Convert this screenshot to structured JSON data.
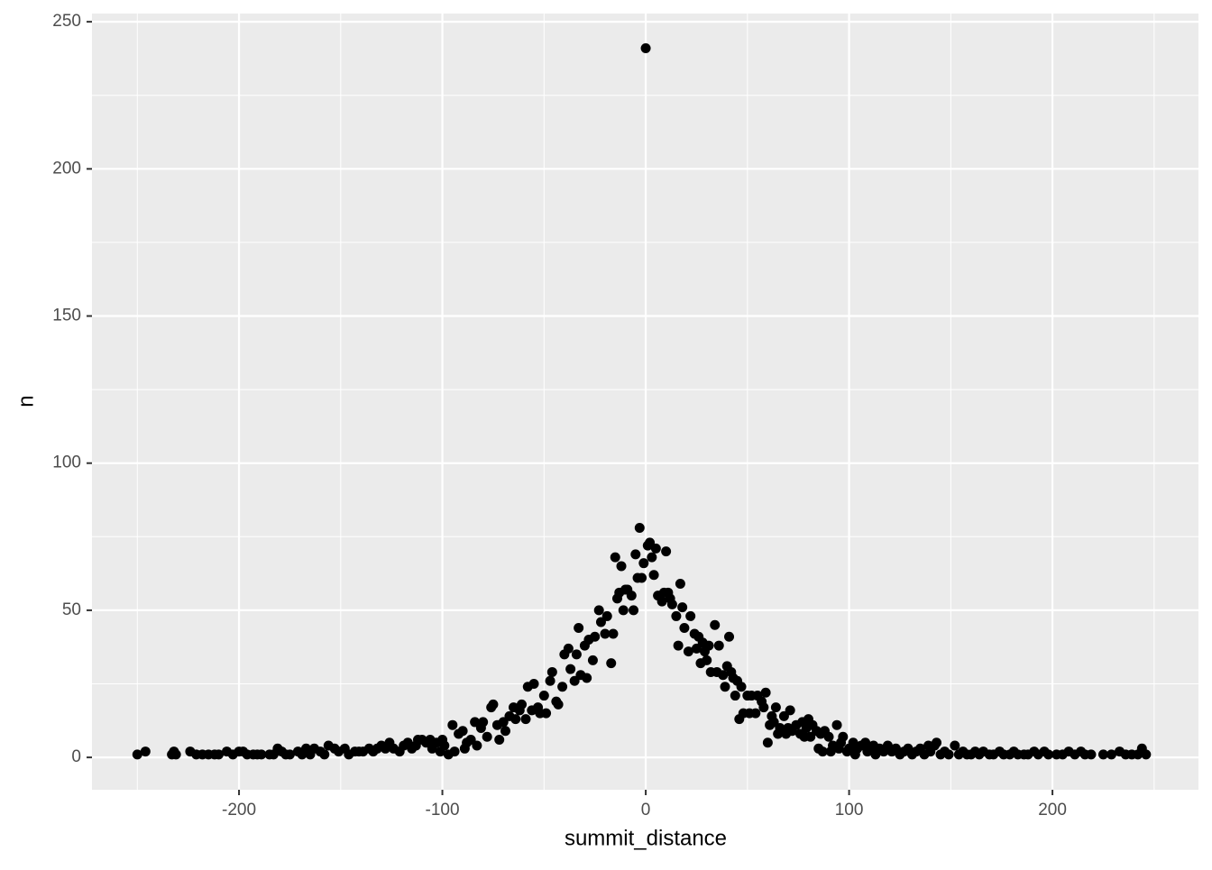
{
  "chart_data": {
    "type": "scatter",
    "x_label": "summit_distance",
    "y_label": "n",
    "xlim": [
      -272.3,
      271.8
    ],
    "ylim": [
      -11,
      252.8
    ],
    "xticks": [
      -200,
      -100,
      0,
      100,
      200
    ],
    "yticks": [
      0,
      50,
      100,
      150,
      200,
      250
    ],
    "x_minor_grid": [
      -250,
      -150,
      -50,
      50,
      150,
      250
    ],
    "y_minor_grid": [
      25,
      75,
      125,
      175,
      225
    ],
    "grid": true,
    "color": "#000000",
    "series": [
      {
        "name": "n",
        "color": "#000000",
        "x": [
          -250,
          -246,
          -233,
          -232,
          -231,
          -224,
          -221,
          -218,
          -215,
          -212,
          -210,
          -206,
          -203,
          -200,
          -198,
          -196,
          -193,
          -191,
          -189,
          -185,
          -183,
          -181,
          -179,
          -177,
          -175,
          -171,
          -169,
          -167,
          -165,
          -163,
          -160,
          -158,
          -156,
          -153,
          -151,
          -148,
          -146,
          -143,
          -141,
          -139,
          -136,
          -134,
          -132,
          -130,
          -128,
          -126,
          -124,
          -121,
          -119,
          -117,
          -115,
          -113,
          -112,
          -110,
          -108,
          -106,
          -105,
          -103,
          -101,
          -100,
          -99,
          -97,
          -95,
          -94,
          -92,
          -90,
          -89,
          -88,
          -86,
          -84,
          -83,
          -81,
          -80,
          -78,
          -76,
          -75,
          -73,
          -72,
          -70,
          -69,
          -67,
          -65,
          -64,
          -62,
          -61,
          -59,
          -58,
          -56,
          -55,
          -53,
          -52,
          -50,
          -49,
          -47,
          -46,
          -44,
          -43,
          -41,
          -40,
          -38,
          -37,
          -35,
          -34,
          -33,
          -32,
          -30,
          -29,
          -28,
          -26,
          -25,
          -23,
          -22,
          -20,
          -19,
          -17,
          -16,
          -15,
          -14,
          -13,
          -12,
          -11,
          -10,
          -9,
          -7,
          -6,
          -5,
          -4,
          -3,
          -2,
          -1,
          0,
          1,
          2,
          3,
          4,
          5,
          6,
          8,
          9,
          10,
          11,
          12,
          13,
          15,
          16,
          17,
          18,
          19,
          21,
          22,
          24,
          25,
          26,
          27,
          28,
          29,
          30,
          31,
          32,
          34,
          35,
          36,
          38,
          39,
          40,
          41,
          42,
          43,
          44,
          45,
          46,
          47,
          48,
          50,
          51,
          52,
          54,
          55,
          57,
          58,
          59,
          60,
          61,
          62,
          63,
          64,
          65,
          66,
          68,
          69,
          70,
          71,
          72,
          74,
          76,
          77,
          78,
          79,
          80,
          81,
          82,
          84,
          85,
          86,
          87,
          88,
          90,
          91,
          92,
          94,
          95,
          96,
          97,
          99,
          100,
          102,
          103,
          104,
          106,
          108,
          109,
          110,
          112,
          113,
          115,
          117,
          119,
          121,
          123,
          125,
          127,
          129,
          131,
          133,
          135,
          137,
          139,
          140,
          142,
          143,
          145,
          147,
          149,
          152,
          154,
          156,
          158,
          160,
          162,
          164,
          166,
          169,
          171,
          174,
          176,
          179,
          181,
          183,
          186,
          188,
          191,
          193,
          196,
          198,
          202,
          205,
          208,
          211,
          214,
          216,
          219,
          225,
          229,
          233,
          236,
          239,
          242,
          244,
          246
        ],
        "values": [
          1,
          2,
          1,
          2,
          1,
          2,
          1,
          1,
          1,
          1,
          1,
          2,
          1,
          2,
          2,
          1,
          1,
          1,
          1,
          1,
          1,
          3,
          2,
          1,
          1,
          2,
          1,
          3,
          1,
          3,
          2,
          1,
          4,
          3,
          2,
          3,
          1,
          2,
          2,
          2,
          3,
          2,
          3,
          4,
          3,
          5,
          3,
          2,
          4,
          5,
          3,
          4,
          6,
          6,
          5,
          6,
          3,
          5,
          2,
          6,
          4,
          1,
          11,
          2,
          8,
          9,
          3,
          5,
          6,
          12,
          4,
          10,
          12,
          7,
          17,
          18,
          11,
          6,
          12,
          9,
          14,
          17,
          13,
          16,
          18,
          13,
          24,
          16,
          25,
          17,
          15,
          21,
          15,
          26,
          29,
          19,
          18,
          24,
          35,
          37,
          30,
          26,
          35,
          44,
          28,
          38,
          27,
          40,
          33,
          41,
          50,
          46,
          42,
          48,
          32,
          42,
          68,
          54,
          56,
          65,
          50,
          57,
          57,
          55,
          50,
          69,
          61,
          78,
          61,
          66,
          241,
          72,
          73,
          68,
          62,
          71,
          55,
          53,
          56,
          70,
          56,
          54,
          52,
          48,
          38,
          59,
          51,
          44,
          36,
          48,
          42,
          37,
          41,
          32,
          39,
          36,
          33,
          38,
          29,
          45,
          29,
          38,
          28,
          24,
          31,
          41,
          29,
          27,
          21,
          26,
          13,
          24,
          15,
          21,
          15,
          21,
          15,
          21,
          19,
          17,
          22,
          5,
          11,
          14,
          12,
          17,
          8,
          10,
          14,
          8,
          10,
          16,
          9,
          11,
          8,
          12,
          7,
          10,
          13,
          7,
          11,
          9,
          3,
          8,
          2,
          9,
          7,
          2,
          4,
          11,
          3,
          5,
          7,
          2,
          3,
          5,
          1,
          3,
          4,
          5,
          2,
          3,
          4,
          1,
          3,
          2,
          4,
          2,
          3,
          1,
          2,
          3,
          1,
          2,
          3,
          1,
          4,
          2,
          4,
          5,
          1,
          2,
          1,
          4,
          1,
          2,
          1,
          1,
          2,
          1,
          2,
          1,
          1,
          2,
          1,
          1,
          2,
          1,
          1,
          1,
          2,
          1,
          2,
          1,
          1,
          1,
          2,
          1,
          2,
          1,
          1,
          1,
          1,
          2,
          1,
          1,
          1,
          3,
          1
        ]
      }
    ]
  }
}
